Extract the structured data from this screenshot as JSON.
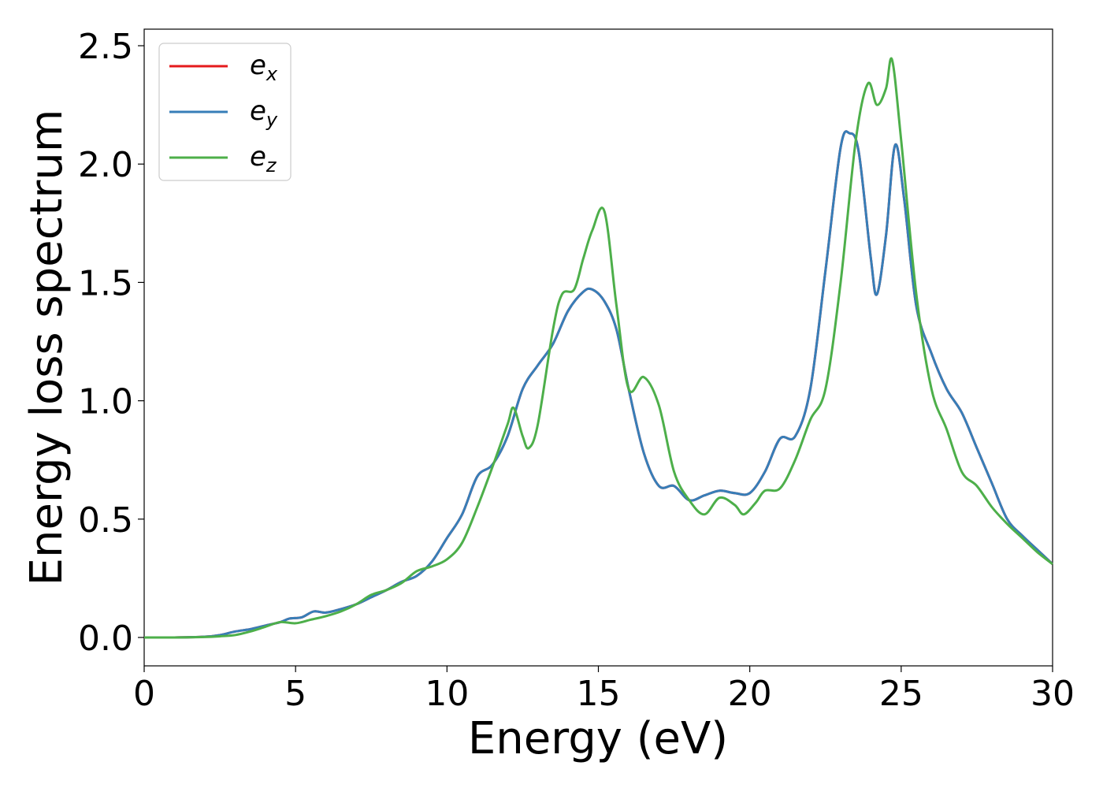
{
  "chart_data": {
    "type": "line",
    "title": "",
    "xlabel": "Energy (eV)",
    "ylabel": "Energy loss spectrum",
    "xlim": [
      0,
      30
    ],
    "ylim": [
      -0.12,
      2.57
    ],
    "xticks": [
      "0",
      "5",
      "10",
      "15",
      "20",
      "25",
      "30"
    ],
    "yticks": [
      "0.0",
      "0.5",
      "1.0",
      "1.5",
      "2.0",
      "2.5"
    ],
    "grid": false,
    "legend_position": "top-left",
    "series": [
      {
        "name": "e_x",
        "legend_base": "e",
        "legend_sub": "x",
        "color": "#e41a1c",
        "x": [
          0,
          1,
          2,
          2.5,
          3,
          3.5,
          4,
          4.5,
          4.8,
          5.2,
          5.6,
          6,
          6.5,
          7,
          7.5,
          8,
          8.5,
          9,
          9.5,
          10,
          10.5,
          11,
          11.5,
          12,
          12.5,
          13,
          13.5,
          14,
          14.5,
          14.8,
          15.2,
          15.6,
          16,
          16.5,
          17,
          17.5,
          18,
          18.5,
          19,
          19.5,
          20,
          20.5,
          21,
          21.5,
          22,
          22.5,
          23,
          23.3,
          23.6,
          24,
          24.2,
          24.5,
          24.8,
          25.1,
          25.5,
          26,
          26.5,
          27,
          27.5,
          28,
          28.5,
          29,
          29.5,
          30
        ],
        "y": [
          0,
          0,
          0.003,
          0.01,
          0.025,
          0.035,
          0.05,
          0.065,
          0.08,
          0.085,
          0.11,
          0.105,
          0.12,
          0.14,
          0.17,
          0.2,
          0.235,
          0.26,
          0.32,
          0.42,
          0.52,
          0.68,
          0.73,
          0.85,
          1.05,
          1.15,
          1.24,
          1.38,
          1.46,
          1.47,
          1.42,
          1.3,
          1.05,
          0.78,
          0.64,
          0.64,
          0.58,
          0.6,
          0.62,
          0.61,
          0.61,
          0.7,
          0.84,
          0.85,
          1.05,
          1.55,
          2.07,
          2.13,
          2.05,
          1.6,
          1.45,
          1.7,
          2.08,
          1.85,
          1.4,
          1.2,
          1.05,
          0.95,
          0.8,
          0.65,
          0.5,
          0.43,
          0.37,
          0.31
        ]
      },
      {
        "name": "e_y",
        "legend_base": "e",
        "legend_sub": "y",
        "color": "#377eb8",
        "x": [
          0,
          1,
          2,
          2.5,
          3,
          3.5,
          4,
          4.5,
          4.8,
          5.2,
          5.6,
          6,
          6.5,
          7,
          7.5,
          8,
          8.5,
          9,
          9.5,
          10,
          10.5,
          11,
          11.5,
          12,
          12.5,
          13,
          13.5,
          14,
          14.5,
          14.8,
          15.2,
          15.6,
          16,
          16.5,
          17,
          17.5,
          18,
          18.5,
          19,
          19.5,
          20,
          20.5,
          21,
          21.5,
          22,
          22.5,
          23,
          23.3,
          23.6,
          24,
          24.2,
          24.5,
          24.8,
          25.1,
          25.5,
          26,
          26.5,
          27,
          27.5,
          28,
          28.5,
          29,
          29.5,
          30
        ],
        "y": [
          0,
          0,
          0.003,
          0.01,
          0.025,
          0.035,
          0.05,
          0.065,
          0.08,
          0.085,
          0.11,
          0.105,
          0.12,
          0.14,
          0.17,
          0.2,
          0.235,
          0.26,
          0.32,
          0.42,
          0.52,
          0.68,
          0.73,
          0.85,
          1.05,
          1.15,
          1.24,
          1.38,
          1.46,
          1.47,
          1.42,
          1.3,
          1.05,
          0.78,
          0.64,
          0.64,
          0.58,
          0.6,
          0.62,
          0.61,
          0.61,
          0.7,
          0.84,
          0.85,
          1.05,
          1.55,
          2.07,
          2.13,
          2.05,
          1.6,
          1.45,
          1.7,
          2.08,
          1.85,
          1.4,
          1.2,
          1.05,
          0.95,
          0.8,
          0.65,
          0.5,
          0.43,
          0.37,
          0.31
        ]
      },
      {
        "name": "e_z",
        "legend_base": "e",
        "legend_sub": "z",
        "color": "#4daf4a",
        "x": [
          0,
          1,
          2,
          2.5,
          3,
          3.5,
          4,
          4.5,
          5,
          5.5,
          6,
          6.5,
          7,
          7.5,
          8,
          8.5,
          9,
          9.5,
          10,
          10.5,
          11,
          11.5,
          12,
          12.2,
          12.5,
          12.7,
          13,
          13.5,
          13.8,
          14.2,
          14.5,
          14.8,
          15.2,
          15.6,
          16,
          16.5,
          17,
          17.5,
          18,
          18.5,
          19,
          19.5,
          19.8,
          20.2,
          20.5,
          21,
          21.5,
          22,
          22.5,
          23,
          23.5,
          23.9,
          24.2,
          24.5,
          24.7,
          25,
          25.5,
          26,
          26.5,
          27,
          27.5,
          28,
          28.5,
          29,
          29.5,
          30
        ],
        "y": [
          0,
          0,
          0.002,
          0.005,
          0.01,
          0.025,
          0.045,
          0.065,
          0.06,
          0.075,
          0.09,
          0.11,
          0.14,
          0.18,
          0.2,
          0.23,
          0.28,
          0.3,
          0.33,
          0.4,
          0.55,
          0.72,
          0.9,
          0.97,
          0.85,
          0.8,
          0.9,
          1.3,
          1.45,
          1.47,
          1.6,
          1.72,
          1.8,
          1.4,
          1.05,
          1.1,
          0.98,
          0.7,
          0.58,
          0.52,
          0.59,
          0.56,
          0.52,
          0.57,
          0.62,
          0.63,
          0.75,
          0.92,
          1.05,
          1.5,
          2.1,
          2.34,
          2.25,
          2.32,
          2.44,
          2.1,
          1.45,
          1.05,
          0.88,
          0.7,
          0.64,
          0.55,
          0.48,
          0.42,
          0.36,
          0.31
        ]
      }
    ]
  }
}
